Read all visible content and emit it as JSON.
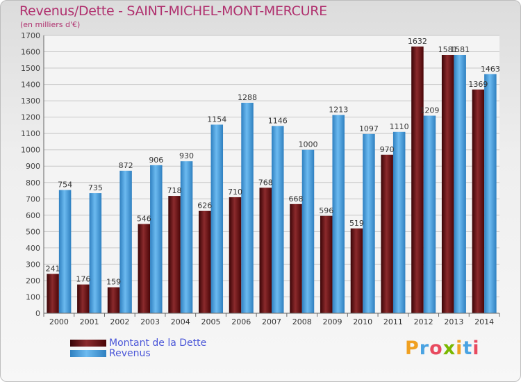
{
  "chart_data": {
    "type": "bar",
    "title": "Revenus/Dette - SAINT-MICHEL-MONT-MERCURE",
    "subtitle": "(en milliers d'€)",
    "categories": [
      "2000",
      "2001",
      "2002",
      "2003",
      "2004",
      "2005",
      "2006",
      "2007",
      "2008",
      "2009",
      "2010",
      "2011",
      "2012",
      "2013",
      "2014"
    ],
    "series": [
      {
        "name": "Montant de la Dette",
        "color": "#7b1618",
        "values": [
          241,
          176,
          159,
          546,
          718,
          626,
          710,
          768,
          668,
          596,
          519,
          970,
          1632,
          1581,
          1369
        ],
        "labels": [
          "241",
          "176",
          "159",
          "546",
          "718",
          "626",
          "710",
          "768",
          "668",
          "596",
          "519",
          "970",
          "1632",
          "1581",
          "1369"
        ]
      },
      {
        "name": "Revenus",
        "color": "#4aa3e2",
        "values": [
          754,
          735,
          872,
          906,
          930,
          1154,
          1288,
          1146,
          1000,
          1213,
          1097,
          1110,
          1209,
          1581,
          1463
        ],
        "labels": [
          "754",
          "735",
          "872",
          "906",
          "930",
          "1154",
          "1288",
          "1146",
          "1000",
          "1213",
          "1097",
          "1110",
          "1209",
          "1581",
          "1463"
        ]
      }
    ],
    "yticks": [
      "0",
      "100",
      "200",
      "300",
      "400",
      "500",
      "600",
      "700",
      "800",
      "900",
      "1000",
      "1100",
      "1200",
      "1300",
      "1400",
      "1500",
      "1600",
      "1700"
    ],
    "ylim": [
      0,
      1700
    ],
    "grid": true,
    "legend_position": "bottom-left"
  },
  "brand": {
    "letters": [
      "P",
      "r",
      "o",
      "x",
      "i",
      "t",
      "i"
    ],
    "colors": [
      "#f0a020",
      "#4aa3e2",
      "#e84a5f",
      "#7ab800",
      "#f0a020",
      "#4aa3e2",
      "#e84a5f"
    ]
  }
}
